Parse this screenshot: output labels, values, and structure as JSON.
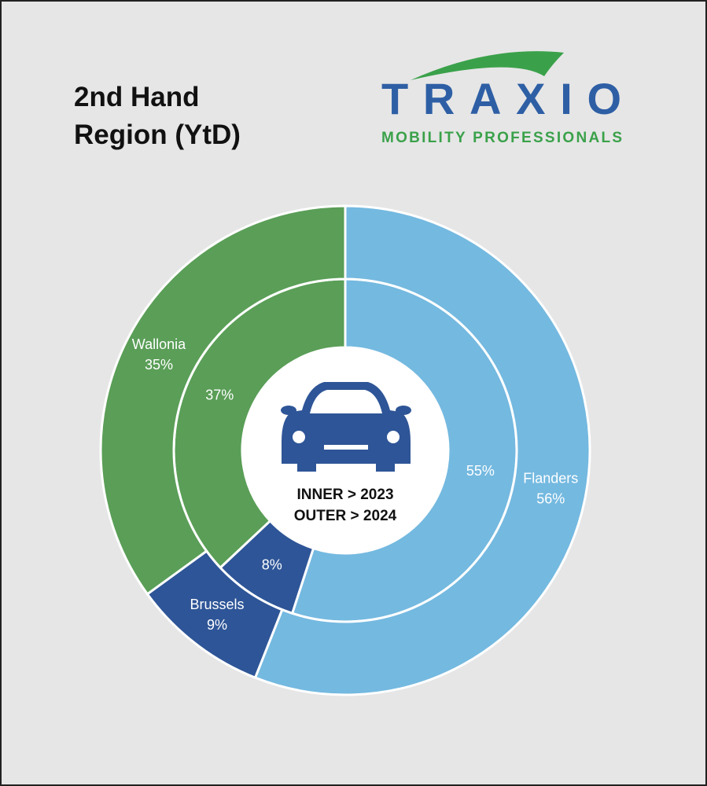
{
  "chart_data": {
    "type": "nested-donut",
    "title": "2nd Hand Region (YtD)",
    "categories": [
      "Flanders",
      "Brussels",
      "Wallonia"
    ],
    "colors": [
      "#74b9e0",
      "#2e5597",
      "#5a9e57"
    ],
    "series": [
      {
        "name": "INNER > 2023",
        "values": [
          55,
          8,
          37
        ],
        "value_labels": [
          "55%",
          "8%",
          "37%"
        ]
      },
      {
        "name": "OUTER > 2024",
        "values": [
          56,
          9,
          35
        ],
        "value_labels": [
          "56%",
          "9%",
          "35%"
        ]
      }
    ]
  },
  "logo": {
    "name": "TRAXIO",
    "tagline": "MOBILITY PROFESSIONALS"
  }
}
